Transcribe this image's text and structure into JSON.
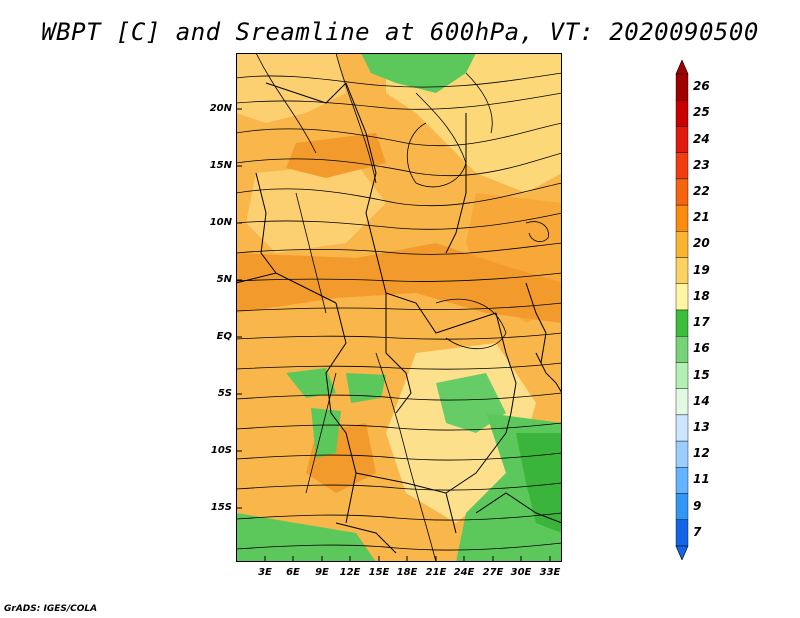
{
  "title": "WBPT [C] and Sreamline at 600hPa, VT: 2020090500",
  "footer": "GrADS: IGES/COLA",
  "map": {
    "lat_labels": [
      "20N",
      "15N",
      "10N",
      "5N",
      "EQ",
      "5S",
      "10S",
      "15S"
    ],
    "lon_labels": [
      "3E",
      "6E",
      "9E",
      "12E",
      "15E",
      "18E",
      "21E",
      "24E",
      "27E",
      "30E",
      "33E"
    ]
  },
  "colorbar": {
    "levels": [
      "26",
      "25",
      "24",
      "23",
      "22",
      "21",
      "20",
      "19",
      "18",
      "17",
      "16",
      "15",
      "14",
      "13",
      "12",
      "11",
      "9",
      "7"
    ],
    "colors": [
      "#a00000",
      "#c80000",
      "#e11a0f",
      "#f03c0f",
      "#f5640f",
      "#fa8c0f",
      "#fab432",
      "#fad264",
      "#fff5a5",
      "#3cbe3c",
      "#78d278",
      "#b4f0b4",
      "#e1fae1",
      "#cde6ff",
      "#9bcdff",
      "#64b4ff",
      "#3296f5",
      "#1464e6"
    ]
  }
}
